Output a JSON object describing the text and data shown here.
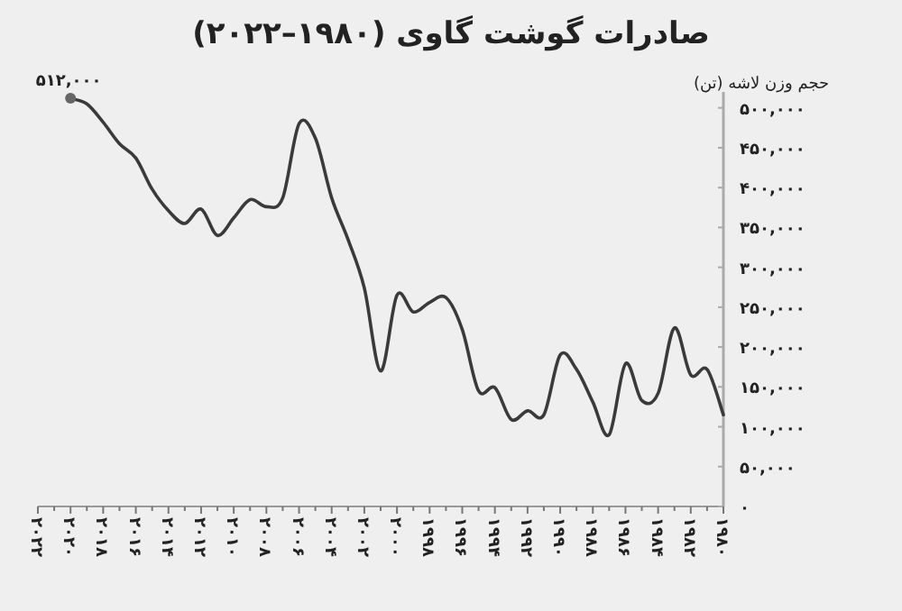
{
  "chart_data": {
    "type": "line",
    "title": "صادرات گوشت گاوی (۱۹۸۰–۲۰۲۲)",
    "ylabel": "حجم وزن لاشه (تن)",
    "x": [
      2020,
      2019,
      2018,
      2017,
      2016,
      2015,
      2014,
      2013,
      2012,
      2011,
      2010,
      2009,
      2008,
      2007,
      2006,
      2005,
      2004,
      2003,
      2002,
      2001,
      2000,
      1999,
      1998,
      1997,
      1996,
      1995,
      1994,
      1993,
      1992,
      1991,
      1990,
      1989,
      1988,
      1987,
      1986,
      1985,
      1984,
      1983,
      1982,
      1981,
      1980
    ],
    "series": [
      {
        "color": "#3a3a3a",
        "values": [
          512000,
          505000,
          482000,
          455000,
          437000,
          398000,
          371000,
          355000,
          373000,
          340000,
          362000,
          385000,
          376000,
          387000,
          480000,
          462000,
          387000,
          335000,
          274000,
          170000,
          265000,
          244000,
          256000,
          262000,
          222000,
          145000,
          149000,
          109000,
          120000,
          115000,
          190000,
          172000,
          131000,
          90000,
          179000,
          133000,
          142000,
          224000,
          165000,
          172000,
          115000
        ]
      }
    ],
    "annotations": [
      {
        "text": "۵۱۲,۰۰۰",
        "x": 2020,
        "y": 512000
      }
    ],
    "xlim": [
      2022,
      1980
    ],
    "xticks": [
      {
        "value": 2022,
        "label": "۲۰۲۲"
      },
      {
        "value": 2021,
        "label": null
      },
      {
        "value": 2020,
        "label": "۲۰۲۰"
      },
      {
        "value": 2019,
        "label": null
      },
      {
        "value": 2018,
        "label": "۲۰۱۸"
      },
      {
        "value": 2017,
        "label": null
      },
      {
        "value": 2016,
        "label": "۲۰۱۶"
      },
      {
        "value": 2015,
        "label": null
      },
      {
        "value": 2014,
        "label": "۲۰۱۴"
      },
      {
        "value": 2013,
        "label": null
      },
      {
        "value": 2012,
        "label": "۲۰۱۲"
      },
      {
        "value": 2011,
        "label": null
      },
      {
        "value": 2010,
        "label": "۲۰۱۰"
      },
      {
        "value": 2009,
        "label": null
      },
      {
        "value": 2008,
        "label": "۲۰۰۸"
      },
      {
        "value": 2007,
        "label": null
      },
      {
        "value": 2006,
        "label": "۲۰۰۶"
      },
      {
        "value": 2005,
        "label": null
      },
      {
        "value": 2004,
        "label": "۲۰۰۴"
      },
      {
        "value": 2003,
        "label": null
      },
      {
        "value": 2002,
        "label": "۲۰۰۲"
      },
      {
        "value": 2001,
        "label": null
      },
      {
        "value": 2000,
        "label": "۲۰۰۰"
      },
      {
        "value": 1999,
        "label": null
      },
      {
        "value": 1998,
        "label": "۱۹۹۸"
      },
      {
        "value": 1997,
        "label": null
      },
      {
        "value": 1996,
        "label": "۱۹۹۶"
      },
      {
        "value": 1995,
        "label": null
      },
      {
        "value": 1994,
        "label": "۱۹۹۴"
      },
      {
        "value": 1993,
        "label": null
      },
      {
        "value": 1992,
        "label": "۱۹۹۲"
      },
      {
        "value": 1991,
        "label": null
      },
      {
        "value": 1990,
        "label": "۱۹۹۰"
      },
      {
        "value": 1989,
        "label": null
      },
      {
        "value": 1988,
        "label": "۱۹۸۸"
      },
      {
        "value": 1987,
        "label": null
      },
      {
        "value": 1986,
        "label": "۱۹۸۶"
      },
      {
        "value": 1985,
        "label": null
      },
      {
        "value": 1984,
        "label": "۱۹۸۴"
      },
      {
        "value": 1983,
        "label": null
      },
      {
        "value": 1982,
        "label": "۱۹۸۲"
      },
      {
        "value": 1981,
        "label": null
      },
      {
        "value": 1980,
        "label": "۱۹۸۰"
      }
    ],
    "ylim": [
      0,
      520000
    ],
    "yticks": [
      {
        "value": 0,
        "label": "۰"
      },
      {
        "value": 50000,
        "label": "۵۰,۰۰۰"
      },
      {
        "value": 100000,
        "label": "۱۰۰,۰۰۰"
      },
      {
        "value": 150000,
        "label": "۱۵۰,۰۰۰"
      },
      {
        "value": 200000,
        "label": "۲۰۰,۰۰۰"
      },
      {
        "value": 250000,
        "label": "۲۵۰,۰۰۰"
      },
      {
        "value": 300000,
        "label": "۳۰۰,۰۰۰"
      },
      {
        "value": 350000,
        "label": "۳۵۰,۰۰۰"
      },
      {
        "value": 400000,
        "label": "۴۰۰,۰۰۰"
      },
      {
        "value": 450000,
        "label": "۴۵۰,۰۰۰"
      },
      {
        "value": 500000,
        "label": "۵۰۰,۰۰۰"
      }
    ]
  }
}
